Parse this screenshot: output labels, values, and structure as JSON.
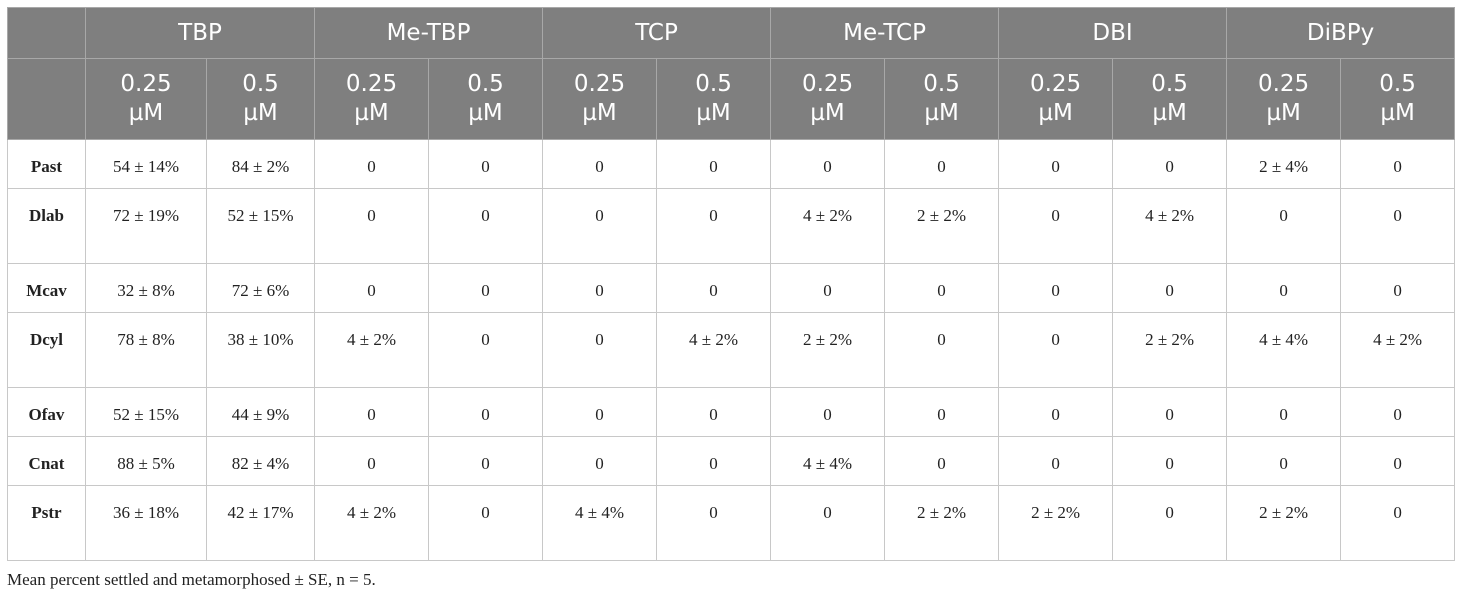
{
  "groups": [
    "TBP",
    "Me-TBP",
    "TCP",
    "Me-TCP",
    "DBI",
    "DiBPy"
  ],
  "conc": [
    "0.25 µM",
    "0.5 µM"
  ],
  "rows": [
    {
      "species": "Past",
      "vals": [
        "54 ± 14%",
        "84 ± 2%",
        "0",
        "0",
        "0",
        "0",
        "0",
        "0",
        "0",
        "0",
        "2 ± 4%",
        "0"
      ]
    },
    {
      "species": "Dlab",
      "vals": [
        "72 ± 19%",
        "52 ± 15%",
        "0",
        "0",
        "0",
        "0",
        "4 ± 2%",
        "2 ± 2%",
        "0",
        "4 ± 2%",
        "0",
        "0"
      ]
    },
    {
      "species": "Mcav",
      "vals": [
        "32 ± 8%",
        "72 ± 6%",
        "0",
        "0",
        "0",
        "0",
        "0",
        "0",
        "0",
        "0",
        "0",
        "0"
      ]
    },
    {
      "species": "Dcyl",
      "vals": [
        "78 ± 8%",
        "38 ± 10%",
        "4 ± 2%",
        "0",
        "0",
        "4 ± 2%",
        "2 ± 2%",
        "0",
        "0",
        "2 ± 2%",
        "4 ± 4%",
        "4 ± 2%"
      ]
    },
    {
      "species": "Ofav",
      "vals": [
        "52 ± 15%",
        "44 ± 9%",
        "0",
        "0",
        "0",
        "0",
        "0",
        "0",
        "0",
        "0",
        "0",
        "0"
      ]
    },
    {
      "species": "Cnat",
      "vals": [
        "88 ± 5%",
        "82 ± 4%",
        "0",
        "0",
        "0",
        "0",
        "4 ± 4%",
        "0",
        "0",
        "0",
        "0",
        "0"
      ]
    },
    {
      "species": "Pstr",
      "vals": [
        "36 ± 18%",
        "42 ± 17%",
        "4 ± 2%",
        "0",
        "4 ± 4%",
        "0",
        "0",
        "2 ± 2%",
        "2 ± 2%",
        "0",
        "2 ± 2%",
        "0"
      ]
    }
  ],
  "footnote": "Mean percent settled and metamorphosed ± SE, n = 5."
}
